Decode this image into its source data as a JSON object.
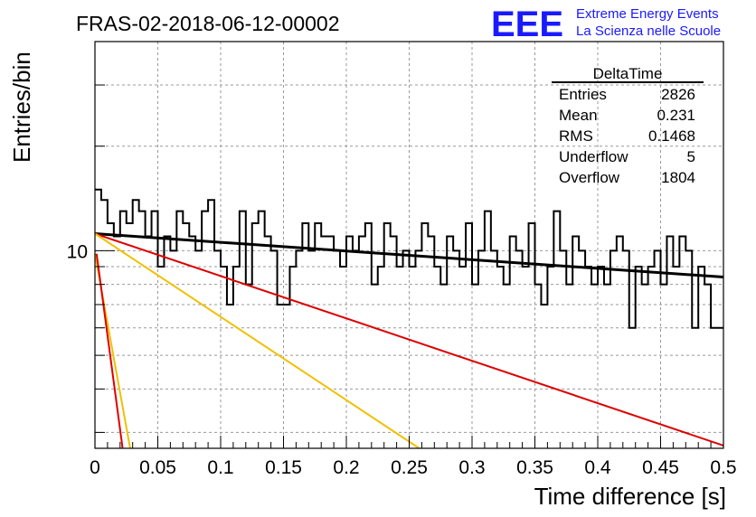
{
  "header": {
    "run_title": "FRAS-02-2018-06-12-00002",
    "logo_text": "EEE",
    "project_line1": "Extreme Energy Events",
    "project_line2": "La Scienza nelle Scuole",
    "brand_color": "#1a1aff"
  },
  "stats_box": {
    "title": "DeltaTime",
    "rows": [
      {
        "label": "Entries",
        "value": "2826"
      },
      {
        "label": "Mean",
        "value": "0.231"
      },
      {
        "label": "RMS",
        "value": "0.1468"
      },
      {
        "label": "Underflow",
        "value": "5"
      },
      {
        "label": "Overflow",
        "value": "1804"
      }
    ]
  },
  "chart_data": {
    "type": "histogram",
    "xlabel": "Time difference [s]",
    "ylabel": "Entries/bin",
    "xlim": [
      0,
      0.5
    ],
    "ylim": [
      2.7,
      40
    ],
    "y_scale": "log",
    "grid": true,
    "x_ticks": [
      "0",
      "0.05",
      "0.1",
      "0.15",
      "0.2",
      "0.25",
      "0.3",
      "0.35",
      "0.4",
      "0.45",
      "0.5"
    ],
    "y_tick_labels": [
      {
        "value": 10,
        "label": "10"
      }
    ],
    "bin_width": 0.005,
    "bin_counts": [
      15,
      14,
      12,
      11,
      13,
      12,
      14,
      13,
      11,
      13,
      9,
      11,
      10,
      13,
      12,
      11,
      10,
      13,
      14,
      10,
      9,
      7,
      9,
      13,
      8,
      12,
      13,
      11,
      10,
      7,
      7,
      9,
      10,
      12,
      10,
      12,
      11,
      11,
      10,
      9,
      11,
      10,
      11,
      12,
      8,
      9,
      12,
      11,
      9,
      10,
      9,
      10,
      12,
      11,
      9,
      8,
      11,
      10,
      9,
      12,
      8,
      10,
      13,
      10,
      9,
      8,
      11,
      10,
      9,
      12,
      8,
      7,
      9,
      13,
      10,
      8,
      11,
      10,
      9,
      8,
      9,
      8,
      10,
      11,
      10,
      6,
      9,
      8,
      9,
      10,
      8,
      11,
      9,
      11,
      10,
      6,
      9,
      8,
      6,
      6
    ],
    "colors": {
      "histogram": "#000000",
      "fit_main": "#000000",
      "fit_red": "#dd0000",
      "fit_yellow": "#f0c000"
    },
    "fits": [
      {
        "color": "#000000",
        "x": [
          0,
          0.5
        ],
        "y": [
          11.2,
          8.4
        ]
      },
      {
        "color": "#dd0000",
        "x": [
          0,
          0.5
        ],
        "y": [
          11.2,
          2.75
        ]
      },
      {
        "color": "#f0c000",
        "x": [
          0,
          0.258
        ],
        "y": [
          11.2,
          2.7
        ]
      },
      {
        "color": "#f0c000",
        "x": [
          0,
          0.028
        ],
        "y": [
          9.8,
          2.7
        ]
      },
      {
        "color": "#dd0000",
        "x": [
          0.0013,
          0.022
        ],
        "y": [
          9.8,
          2.7
        ]
      }
    ]
  }
}
